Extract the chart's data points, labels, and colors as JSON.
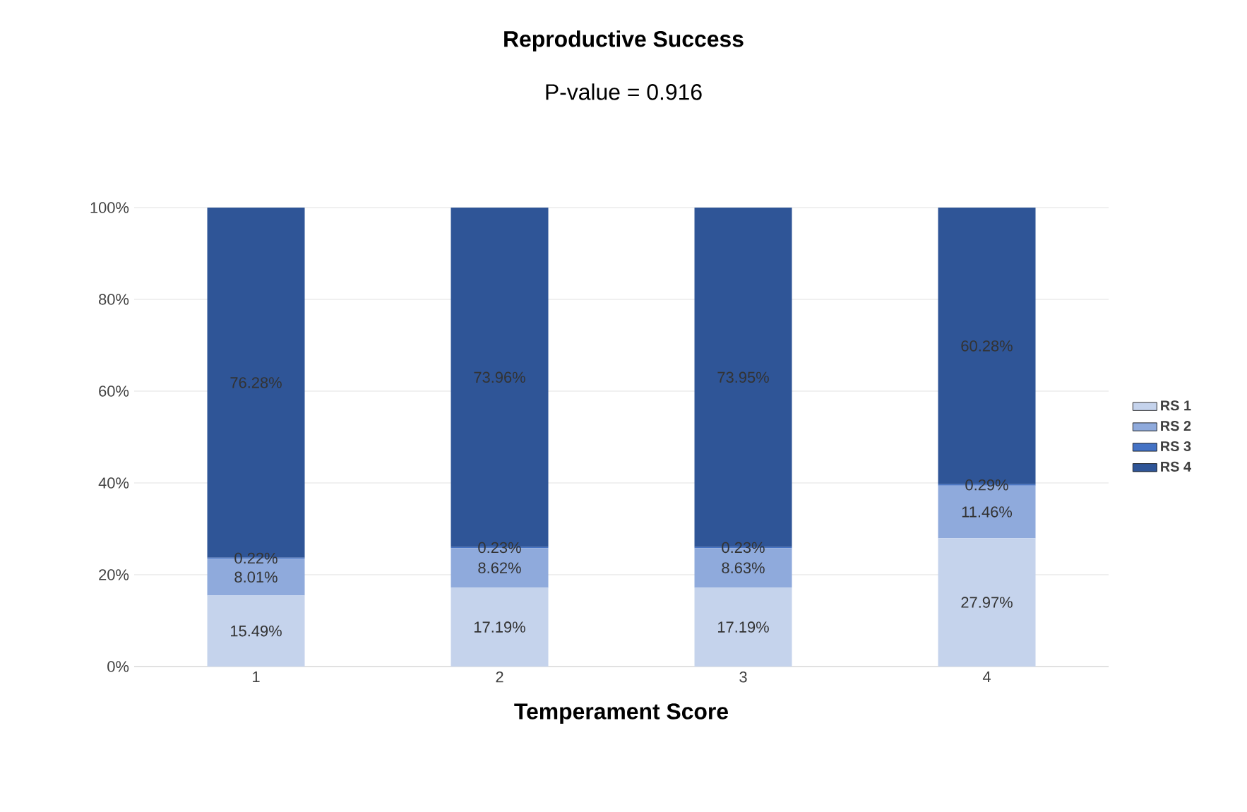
{
  "chart_data": {
    "type": "bar",
    "title": "Reproductive Success",
    "subtitle": "P-value = 0.916",
    "xlabel": "Temperament Score",
    "categories": [
      "1",
      "2",
      "3",
      "4"
    ],
    "stacked": true,
    "series": [
      {
        "name": "RS 1",
        "color": "#c5d3ec",
        "values": [
          15.49,
          17.19,
          17.19,
          27.97
        ],
        "value_labels": [
          "15.49%",
          "17.19%",
          "17.19%",
          "27.97%"
        ]
      },
      {
        "name": "RS 2",
        "color": "#8faadc",
        "values": [
          8.01,
          8.62,
          8.63,
          11.46
        ],
        "value_labels": [
          "8.01%",
          "8.62%",
          "8.63%",
          "11.46%"
        ]
      },
      {
        "name": "RS 3",
        "color": "#4472c4",
        "values": [
          0.22,
          0.23,
          0.23,
          0.29
        ],
        "value_labels": [
          "0.22%",
          "0.23%",
          "0.23%",
          "0.29%"
        ]
      },
      {
        "name": "RS 4",
        "color": "#2f5597",
        "values": [
          76.28,
          73.96,
          73.95,
          60.28
        ],
        "value_labels": [
          "76.28%",
          "73.96%",
          "73.95%",
          "60.28%"
        ]
      }
    ],
    "ylim": [
      0,
      100
    ],
    "yticks": [
      {
        "value": 0,
        "label": "0%"
      },
      {
        "value": 20,
        "label": "20%"
      },
      {
        "value": 40,
        "label": "40%"
      },
      {
        "value": 60,
        "label": "60%"
      },
      {
        "value": 80,
        "label": "80%"
      },
      {
        "value": 100,
        "label": "100%"
      }
    ],
    "grid": "y",
    "legend": "right"
  }
}
